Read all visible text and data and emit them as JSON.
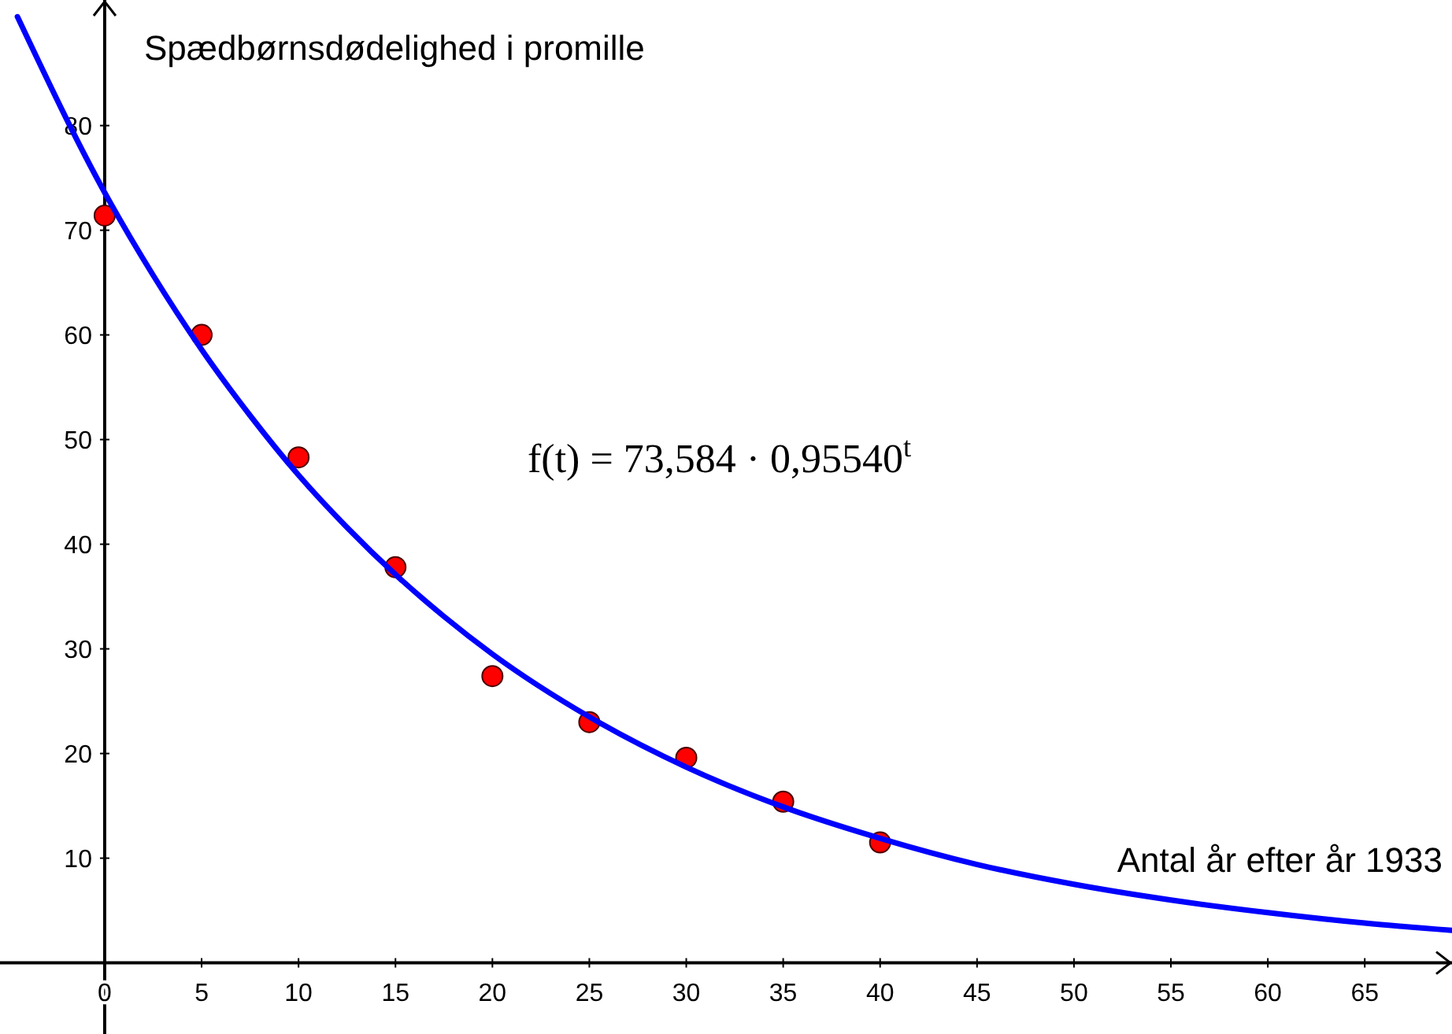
{
  "chart_data": {
    "type": "scatter",
    "xlabel": "Antal år efter år 1933",
    "ylabel": "Spædbørnsdødelighed i promille",
    "annotations": [
      "f(t) = 73,584 · 0,95540$^{t}$"
    ],
    "xlim": [
      -5.4,
      69.5
    ],
    "ylim": [
      -6.8,
      92
    ],
    "xticks": [
      0,
      5,
      10,
      15,
      20,
      25,
      30,
      35,
      40,
      45,
      50,
      55,
      60,
      65
    ],
    "yticks": [
      10,
      20,
      30,
      40,
      50,
      60,
      70,
      80
    ],
    "grid": false,
    "series": [
      {
        "color": "#ff0000",
        "marker": "circle",
        "x": [
          0,
          5,
          10,
          15,
          20,
          25,
          30,
          35,
          40
        ],
        "values": [
          71.4,
          60,
          48.3,
          37.8,
          27.4,
          23,
          19.6,
          15.4,
          11.5
        ]
      },
      {
        "type": "line",
        "color": "#0000ff",
        "marker": "none",
        "line_style": "solid",
        "x": [
          -4.5,
          0,
          2.5,
          5,
          7.5,
          10,
          12.5,
          15,
          17.5,
          20,
          25,
          30,
          35,
          40,
          45,
          50,
          55,
          60,
          65,
          69.5
        ],
        "values": [
          90.4,
          73.6,
          65.7,
          58.6,
          52.3,
          46.6,
          41.6,
          37.1,
          33.1,
          29.5,
          23.5,
          18.7,
          14.9,
          11.9,
          9.4,
          7.5,
          6.0,
          4.8,
          3.8,
          3.1
        ]
      }
    ]
  }
}
